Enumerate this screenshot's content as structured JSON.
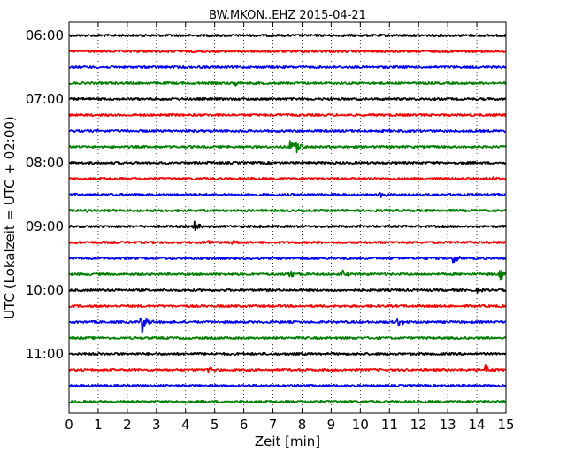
{
  "chart_data": {
    "type": "line",
    "title": "BW.MKON..EHZ 2015-04-21",
    "xlabel": "Zeit  [min]",
    "ylabel": "UTC (Lokalzeit = UTC + 02:00)",
    "xlim": [
      0,
      15
    ],
    "x_ticks": [
      0,
      1,
      2,
      3,
      4,
      5,
      6,
      7,
      8,
      9,
      10,
      11,
      12,
      13,
      14,
      15
    ],
    "x_tick_labels": [
      "0",
      "1",
      "2",
      "3",
      "4",
      "5",
      "6",
      "7",
      "8",
      "9",
      "10",
      "11",
      "12",
      "13",
      "14",
      "15"
    ],
    "y_tick_labels": [
      "06:00",
      "07:00",
      "08:00",
      "09:00",
      "10:00",
      "11:00"
    ],
    "y_tick_rows": [
      0,
      4,
      8,
      12,
      16,
      20
    ],
    "grid": "vertical dotted",
    "trace_colors": [
      "#000000",
      "#ff0000",
      "#0000ff",
      "#008000"
    ],
    "series": [
      {
        "start": "06:00",
        "color": "#000000",
        "events": []
      },
      {
        "start": "06:15",
        "color": "#ff0000",
        "events": []
      },
      {
        "start": "06:30",
        "color": "#0000ff",
        "events": []
      },
      {
        "start": "06:45",
        "color": "#008000",
        "events": [
          {
            "t": 5.7,
            "amp": 4
          }
        ]
      },
      {
        "start": "07:00",
        "color": "#000000",
        "events": []
      },
      {
        "start": "07:15",
        "color": "#ff0000",
        "events": []
      },
      {
        "start": "07:30",
        "color": "#0000ff",
        "events": []
      },
      {
        "start": "07:45",
        "color": "#008000",
        "events": [
          {
            "t": 7.6,
            "amp": 8
          },
          {
            "t": 7.8,
            "amp": 10
          }
        ]
      },
      {
        "start": "08:00",
        "color": "#000000",
        "events": [
          {
            "t": 4.6,
            "amp": 2
          }
        ]
      },
      {
        "start": "08:15",
        "color": "#ff0000",
        "events": [
          {
            "t": 14.5,
            "amp": 3
          }
        ]
      },
      {
        "start": "08:30",
        "color": "#0000ff",
        "events": [
          {
            "t": 10.7,
            "amp": 4
          }
        ]
      },
      {
        "start": "08:45",
        "color": "#008000",
        "events": [
          {
            "t": 0.5,
            "amp": 3
          }
        ]
      },
      {
        "start": "09:00",
        "color": "#000000",
        "events": [
          {
            "t": 4.3,
            "amp": 7
          },
          {
            "t": 6.5,
            "amp": 3
          }
        ]
      },
      {
        "start": "09:15",
        "color": "#ff0000",
        "events": [
          {
            "t": 4.8,
            "amp": 3
          },
          {
            "t": 5.6,
            "amp": 3
          }
        ]
      },
      {
        "start": "09:30",
        "color": "#0000ff",
        "events": [
          {
            "t": 13.2,
            "amp": 8
          }
        ]
      },
      {
        "start": "09:45",
        "color": "#008000",
        "events": [
          {
            "t": 7.6,
            "amp": 9
          },
          {
            "t": 9.4,
            "amp": 4
          },
          {
            "t": 14.8,
            "amp": 8
          }
        ]
      },
      {
        "start": "10:00",
        "color": "#000000",
        "events": [
          {
            "t": 14.0,
            "amp": 3
          }
        ]
      },
      {
        "start": "10:15",
        "color": "#ff0000",
        "events": []
      },
      {
        "start": "10:30",
        "color": "#0000ff",
        "events": [
          {
            "t": 2.5,
            "amp": 14
          },
          {
            "t": 11.3,
            "amp": 8
          }
        ]
      },
      {
        "start": "10:45",
        "color": "#008000",
        "events": []
      },
      {
        "start": "11:00",
        "color": "#000000",
        "events": []
      },
      {
        "start": "11:15",
        "color": "#ff0000",
        "events": [
          {
            "t": 4.8,
            "amp": 5
          },
          {
            "t": 14.3,
            "amp": 6
          }
        ]
      },
      {
        "start": "11:30",
        "color": "#0000ff",
        "events": []
      },
      {
        "start": "11:45",
        "color": "#008000",
        "events": []
      }
    ]
  }
}
